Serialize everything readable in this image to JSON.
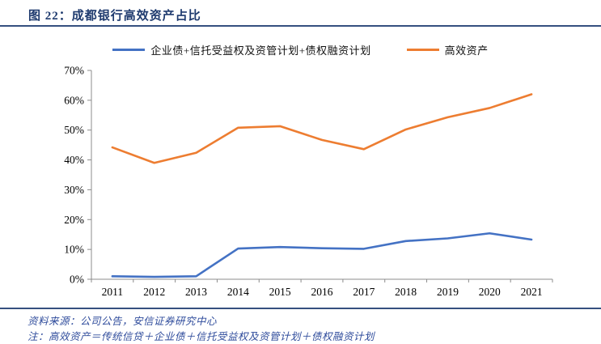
{
  "header": {
    "title": "图 22：成都银行高效资产占比"
  },
  "chart_data": {
    "type": "line",
    "title": "成都银行高效资产占比",
    "categories": [
      "2011",
      "2012",
      "2013",
      "2014",
      "2015",
      "2016",
      "2017",
      "2018",
      "2019",
      "2020",
      "2021"
    ],
    "series": [
      {
        "name": "企业债+信托受益权及资管计划+债权融资计划",
        "color": "#4472C4",
        "values": [
          1.0,
          0.8,
          1.0,
          10.3,
          10.8,
          10.4,
          10.2,
          12.8,
          13.7,
          15.4,
          13.3
        ]
      },
      {
        "name": "高效资产",
        "color": "#ED7D31",
        "values": [
          44.2,
          39.0,
          42.4,
          50.8,
          51.3,
          46.7,
          43.6,
          50.2,
          54.3,
          57.4,
          62.0
        ]
      }
    ],
    "xlabel": "",
    "ylabel": "",
    "ylim": [
      0,
      70
    ],
    "ytick_step": 10,
    "ytick_labels": [
      "0%",
      "10%",
      "20%",
      "30%",
      "40%",
      "50%",
      "60%",
      "70%"
    ],
    "grid": false,
    "legend_position": "top"
  },
  "footer": {
    "source": "资料来源：公司公告，安信证券研究中心",
    "note": "注：高效资产＝传统信贷＋企业债＋信托受益权及资管计划＋债权融资计划"
  },
  "colors": {
    "title_text": "#1E3A6E",
    "rule": "#35507F",
    "footer_text": "#2F4C9C",
    "axis": "#8C8C8C",
    "tick_label": "#000000",
    "series_blue": "#4472C4",
    "series_orange": "#ED7D31"
  }
}
